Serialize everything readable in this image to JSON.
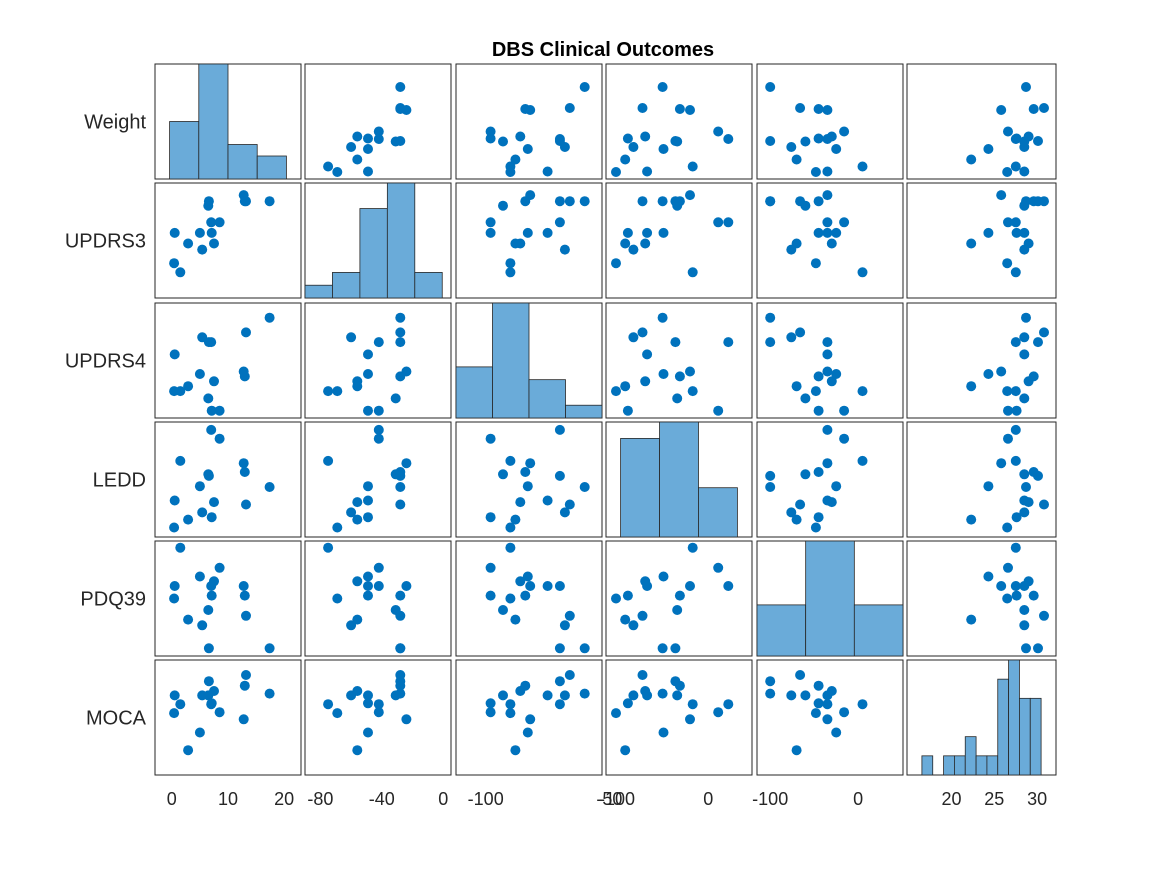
{
  "chart_data": {
    "type": "scatter",
    "title": "DBS Clinical Outcomes",
    "variables": [
      "Weight",
      "UPDRS3",
      "UPDRS4",
      "LEDD",
      "PDQ39",
      "MOCA"
    ],
    "x_ticks": [
      [
        0,
        10,
        20
      ],
      [
        -80,
        -40,
        0
      ],
      [
        -100,
        -50
      ],
      [
        -100,
        0
      ],
      [
        -100,
        0
      ],
      [
        20,
        25,
        30
      ]
    ],
    "grid": false,
    "legend": "none",
    "colors": {
      "points": "#0072bd",
      "bars": "#6aabd9",
      "frame": "#262626"
    },
    "columns": {
      "Weight": [
        0.5,
        5.4,
        0.4,
        7.5,
        8.5,
        6.6,
        2.9,
        6.5,
        13.2,
        7.1,
        17.4,
        12.8,
        5.0,
        1.5,
        7.0,
        13.0
      ],
      "UPDRS3": [
        -49,
        -60,
        -69,
        -56,
        -42,
        -28,
        -56,
        -31,
        -28,
        -49,
        -28,
        -24,
        -49,
        -75,
        -42,
        -28
      ],
      "UPDRS4": [
        -75,
        -68,
        -90,
        -86,
        -98,
        -70,
        -88,
        -93,
        -66,
        -98,
        -60,
        -82,
        -83,
        -90,
        -70,
        -84
      ],
      "LEDD": [
        -67,
        -82,
        -101,
        -69,
        11,
        -36,
        -91,
        -34,
        -72,
        -88,
        -50,
        -20,
        -49,
        -17,
        22,
        -31
      ],
      "PDQ39": [
        -35,
        -76,
        -48,
        -30,
        -16,
        -100,
        -70,
        -60,
        -66,
        -45,
        -100,
        -35,
        -25,
        5,
        -35,
        -45
      ],
      "MOCA": [
        28.5,
        28.5,
        26.5,
        29.0,
        26.6,
        30.1,
        22.3,
        28.5,
        30.8,
        27.6,
        28.7,
        25.8,
        24.3,
        27.5,
        27.5,
        29.6
      ]
    },
    "histogram_counts": {
      "Weight": [
        5,
        10,
        3,
        2
      ],
      "UPDRS3": [
        1,
        2,
        7,
        9,
        2
      ],
      "UPDRS4": [
        4,
        9,
        3,
        1
      ],
      "LEDD": [
        6,
        7,
        3
      ],
      "PDQ39": [
        4,
        9,
        4
      ],
      "MOCA": [
        1,
        0,
        1,
        1,
        2,
        1,
        1,
        5,
        6,
        4,
        4
      ]
    }
  }
}
